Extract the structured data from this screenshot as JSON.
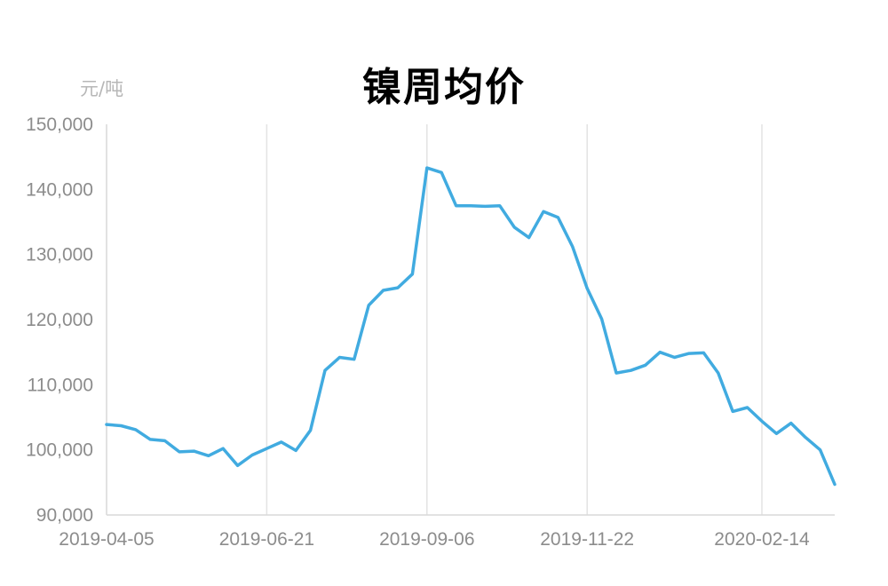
{
  "chart_data": {
    "type": "line",
    "title": "镍周均价",
    "ylabel": "元/吨",
    "xlabel": "",
    "ylim": [
      90000,
      150000
    ],
    "y_ticks": [
      "90,000",
      "100,000",
      "110,000",
      "120,000",
      "130,000",
      "140,000",
      "150,000"
    ],
    "x_tick_labels": [
      "2019-04-05",
      "2019-06-21",
      "2019-09-06",
      "2019-11-22",
      "2020-02-14"
    ],
    "grid": "vertical",
    "line_color": "#41abe0",
    "series": [
      {
        "name": "",
        "x": [
          "2019-04-05",
          "2019-04-12",
          "2019-04-19",
          "2019-04-26",
          "2019-05-03",
          "2019-05-10",
          "2019-05-17",
          "2019-05-24",
          "2019-05-31",
          "2019-06-07",
          "2019-06-14",
          "2019-06-21",
          "2019-06-28",
          "2019-07-05",
          "2019-07-12",
          "2019-07-19",
          "2019-07-26",
          "2019-08-02",
          "2019-08-09",
          "2019-08-16",
          "2019-08-23",
          "2019-08-30",
          "2019-09-06",
          "2019-09-13",
          "2019-09-20",
          "2019-09-27",
          "2019-10-04",
          "2019-10-11",
          "2019-10-18",
          "2019-10-25",
          "2019-11-01",
          "2019-11-08",
          "2019-11-15",
          "2019-11-22",
          "2019-11-29",
          "2019-12-06",
          "2019-12-13",
          "2019-12-20",
          "2019-12-27",
          "2020-01-03",
          "2020-01-10",
          "2020-01-17",
          "2020-01-24",
          "2020-01-31",
          "2020-02-07",
          "2020-02-14",
          "2020-02-21",
          "2020-02-28",
          "2020-03-06",
          "2020-03-13",
          "2020-03-20"
        ],
        "values": [
          103900,
          103700,
          103100,
          101600,
          101400,
          99700,
          99800,
          99100,
          100200,
          97600,
          99200,
          100200,
          101200,
          99900,
          103000,
          112200,
          114200,
          113900,
          122200,
          124500,
          124900,
          127000,
          143300,
          142600,
          137500,
          137500,
          137400,
          137500,
          134200,
          132600,
          136600,
          135700,
          131200,
          124800,
          120100,
          111800,
          112200,
          113000,
          115000,
          114200,
          114800,
          114900,
          111800,
          105900,
          106500,
          104400,
          102500,
          104100,
          101900,
          100000,
          94700
        ]
      }
    ]
  }
}
